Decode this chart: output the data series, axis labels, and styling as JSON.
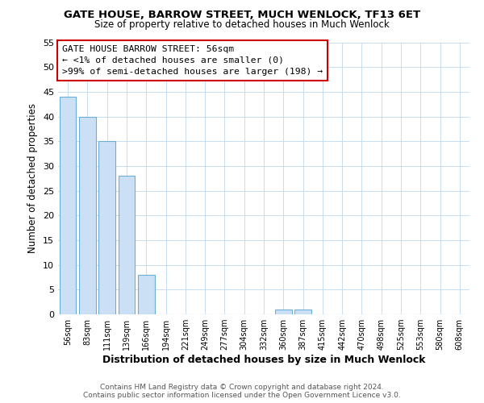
{
  "title": "GATE HOUSE, BARROW STREET, MUCH WENLOCK, TF13 6ET",
  "subtitle": "Size of property relative to detached houses in Much Wenlock",
  "xlabel": "Distribution of detached houses by size in Much Wenlock",
  "ylabel": "Number of detached properties",
  "bar_labels": [
    "56sqm",
    "83sqm",
    "111sqm",
    "139sqm",
    "166sqm",
    "194sqm",
    "221sqm",
    "249sqm",
    "277sqm",
    "304sqm",
    "332sqm",
    "360sqm",
    "387sqm",
    "415sqm",
    "442sqm",
    "470sqm",
    "498sqm",
    "525sqm",
    "553sqm",
    "580sqm",
    "608sqm"
  ],
  "bar_values": [
    44,
    40,
    35,
    28,
    8,
    0,
    0,
    0,
    0,
    0,
    0,
    1,
    1,
    0,
    0,
    0,
    0,
    0,
    0,
    0,
    0
  ],
  "bar_color": "#cce0f5",
  "bar_edge_color": "#6baed6",
  "highlight_index": 0,
  "highlight_bar_edge_color": "#cc0000",
  "annotation_title": "GATE HOUSE BARROW STREET: 56sqm",
  "annotation_line1": "← <1% of detached houses are smaller (0)",
  "annotation_line2": ">99% of semi-detached houses are larger (198) →",
  "annotation_box_edge": "#cc0000",
  "annotation_box_face": "#ffffff",
  "ylim": [
    0,
    55
  ],
  "yticks": [
    0,
    5,
    10,
    15,
    20,
    25,
    30,
    35,
    40,
    45,
    50,
    55
  ],
  "footer_line1": "Contains HM Land Registry data © Crown copyright and database right 2024.",
  "footer_line2": "Contains public sector information licensed under the Open Government Licence v3.0.",
  "bg_color": "#ffffff",
  "grid_color": "#c8ddf0"
}
